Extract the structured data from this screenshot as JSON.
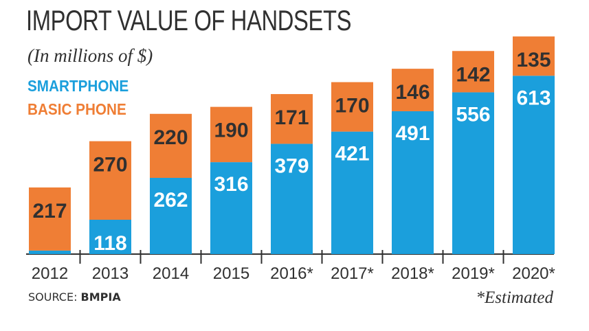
{
  "chart_data": {
    "type": "bar",
    "stacked": true,
    "title": "IMPORT VALUE OF HANDSETS",
    "subtitle": "(In millions of $)",
    "categories": [
      "2012",
      "2013",
      "2014",
      "2015",
      "2016*",
      "2017*",
      "2018*",
      "2019*",
      "2020*"
    ],
    "series": [
      {
        "name": "SMARTPHONE",
        "color": "#1b9fdc",
        "label_color": "#ffffff",
        "values": [
          12,
          118,
          262,
          316,
          379,
          421,
          491,
          556,
          613
        ]
      },
      {
        "name": "BASIC PHONE",
        "color": "#ef7e35",
        "label_color": "#303030",
        "values": [
          217,
          270,
          220,
          190,
          171,
          170,
          146,
          142,
          135
        ]
      }
    ],
    "ylim": [
      0,
      760
    ],
    "grid": false,
    "legend": "top-left"
  },
  "source": {
    "label": "SOURCE:",
    "value": "BMPIA"
  },
  "footnote": "*Estimated"
}
